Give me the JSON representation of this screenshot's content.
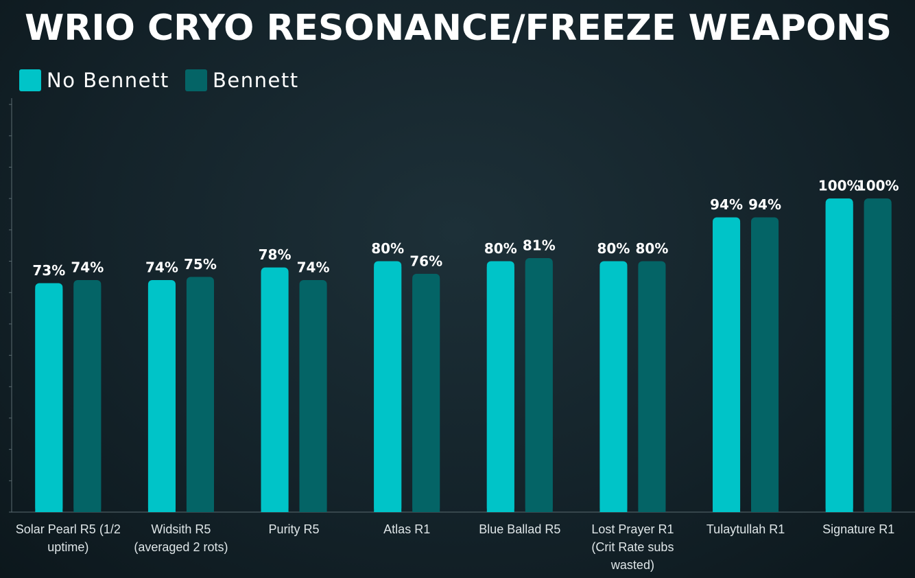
{
  "chart_data": {
    "type": "bar",
    "title": "WRIO CRYO RESONANCE/FREEZE WEAPONS",
    "categories": [
      "Solar Pearl R5 (1/2 uptime)",
      "Widsith R5 (averaged 2 rots)",
      "Purity R5",
      "Atlas R1",
      "Blue Ballad R5",
      "Lost Prayer R1 (Crit Rate subs wasted)",
      "Tulaytullah R1",
      "Signature R1"
    ],
    "series": [
      {
        "name": "No Bennett",
        "color": "#00c4c8",
        "values": [
          73,
          74,
          78,
          80,
          80,
          80,
          94,
          100
        ],
        "value_labels": [
          "73%",
          "74%",
          "78%",
          "80%",
          "80%",
          "80%",
          "94%",
          "100%"
        ]
      },
      {
        "name": "Bennett",
        "color": "#046466",
        "values": [
          74,
          75,
          74,
          76,
          81,
          80,
          94,
          100
        ],
        "value_labels": [
          "74%",
          "75%",
          "74%",
          "76%",
          "81%",
          "80%",
          "94%",
          "100%"
        ]
      }
    ],
    "ylim": [
      0,
      132
    ],
    "yticks": [
      0,
      10,
      20,
      30,
      40,
      50,
      60,
      70,
      80,
      90,
      100,
      110,
      120,
      130
    ]
  }
}
